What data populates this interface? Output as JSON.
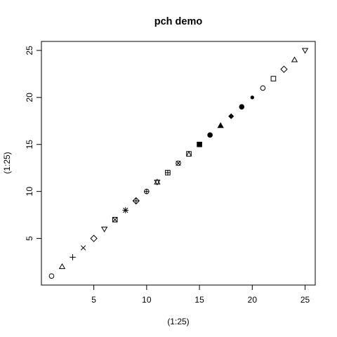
{
  "chart_data": {
    "type": "scatter",
    "title": "pch demo",
    "xlabel": "(1:25)",
    "ylabel": "(1:25)",
    "xlim": [
      0.04,
      25.96
    ],
    "ylim": [
      0.04,
      25.96
    ],
    "xticks": [
      5,
      10,
      15,
      20,
      25
    ],
    "yticks": [
      5,
      10,
      15,
      20,
      25
    ],
    "grid": false,
    "legend": "none",
    "series": [
      {
        "x": [
          1,
          2,
          3,
          4,
          5,
          6,
          7,
          8,
          9,
          10,
          11,
          12,
          13,
          14,
          15,
          16,
          17,
          18,
          19,
          20,
          21,
          22,
          23,
          24,
          25
        ],
        "y": [
          1,
          2,
          3,
          4,
          5,
          6,
          7,
          8,
          9,
          10,
          11,
          12,
          13,
          14,
          15,
          16,
          17,
          18,
          19,
          20,
          21,
          22,
          23,
          24,
          25
        ],
        "pch": [
          1,
          2,
          3,
          4,
          5,
          6,
          7,
          8,
          9,
          10,
          11,
          12,
          13,
          14,
          15,
          16,
          17,
          18,
          19,
          20,
          21,
          22,
          23,
          24,
          25
        ]
      }
    ],
    "color": "#000000"
  }
}
